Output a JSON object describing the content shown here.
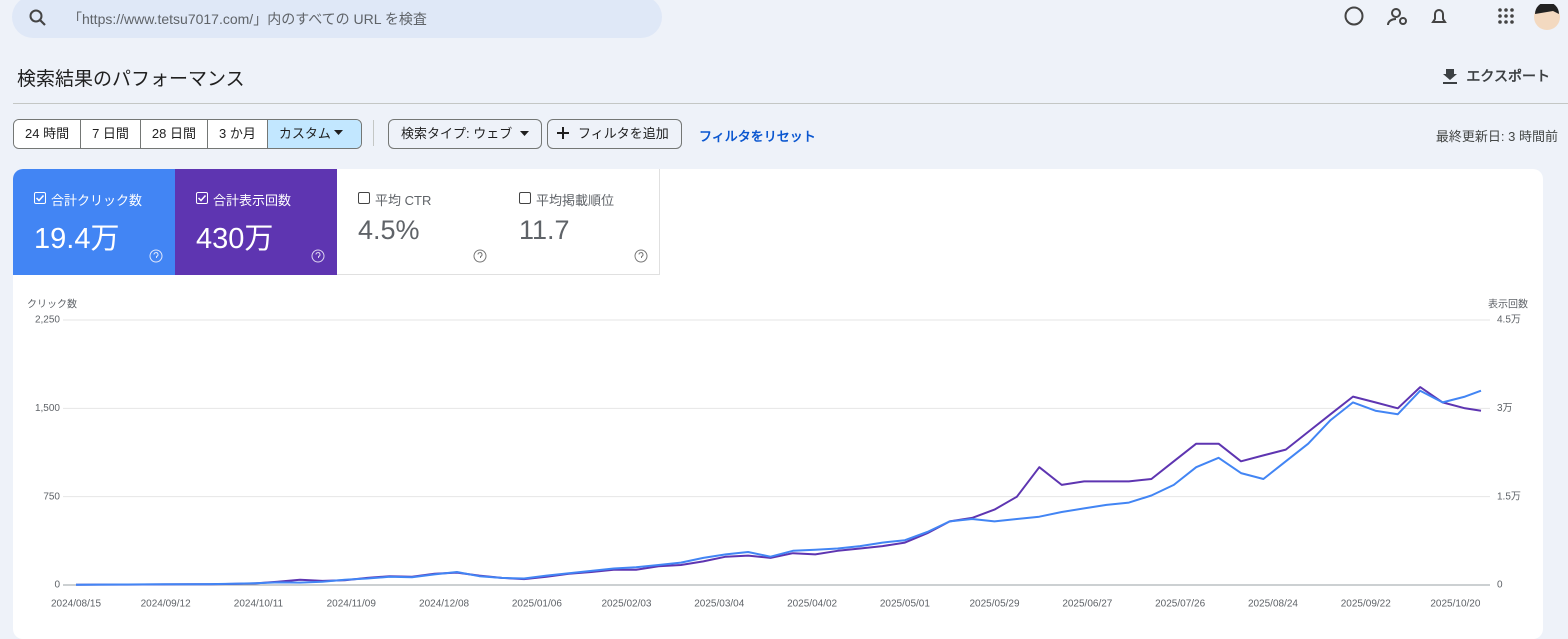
{
  "search": {
    "placeholder": "「https://www.tetsu7017.com/」内のすべての URL を検査"
  },
  "header": {
    "title": "検索結果のパフォーマンス",
    "export": "エクスポート"
  },
  "toolbar": {
    "ranges": [
      "24 時間",
      "7 日間",
      "28 日間",
      "3 か月",
      "カスタム"
    ],
    "search_type": "検索タイプ: ウェブ",
    "add_filter": "フィルタを追加",
    "reset": "フィルタをリセット",
    "last_updated": "最終更新日: 3 時間前"
  },
  "metrics": [
    {
      "label": "合計クリック数",
      "value": "19.4万"
    },
    {
      "label": "合計表示回数",
      "value": "430万"
    },
    {
      "label": "平均 CTR",
      "value": "4.5%"
    },
    {
      "label": "平均掲載順位",
      "value": "11.7"
    }
  ],
  "chart_data": {
    "type": "line",
    "y_label": "クリック数",
    "y2_label": "表示回数",
    "grid": true,
    "x": [
      "2024/08/15",
      "2024/08/22",
      "2024/08/29",
      "2024/09/05",
      "2024/09/12",
      "2024/09/19",
      "2024/09/26",
      "2024/10/03",
      "2024/10/10",
      "2024/10/17",
      "2024/10/24",
      "2024/10/31",
      "2024/11/07",
      "2024/11/14",
      "2024/11/21",
      "2024/11/28",
      "2024/12/05",
      "2024/12/12",
      "2024/12/19",
      "2024/12/26",
      "2025/01/02",
      "2025/01/09",
      "2025/01/16",
      "2025/01/23",
      "2025/01/30",
      "2025/02/06",
      "2025/02/13",
      "2025/02/20",
      "2025/02/27",
      "2025/03/06",
      "2025/03/13",
      "2025/03/20",
      "2025/03/27",
      "2025/04/03",
      "2025/04/10",
      "2025/04/17",
      "2025/04/24",
      "2025/05/01",
      "2025/05/08",
      "2025/05/15",
      "2025/05/22",
      "2025/05/29",
      "2025/06/05",
      "2025/06/12",
      "2025/06/19",
      "2025/06/26",
      "2025/07/03",
      "2025/07/10",
      "2025/07/17",
      "2025/07/24",
      "2025/07/31",
      "2025/08/07",
      "2025/08/14",
      "2025/08/21",
      "2025/08/28",
      "2025/09/04",
      "2025/09/11",
      "2025/09/18",
      "2025/09/25",
      "2025/10/02",
      "2025/10/09",
      "2025/10/16",
      "2025/10/23",
      "2025/10/28"
    ],
    "xticks": [
      "2024/08/15",
      "2024/09/12",
      "2024/10/11",
      "2024/11/09",
      "2024/12/08",
      "2025/01/06",
      "2025/02/03",
      "2025/03/04",
      "2025/04/02",
      "2025/05/01",
      "2025/05/29",
      "2025/06/27",
      "2025/07/26",
      "2025/08/24",
      "2025/09/22",
      "2025/10/20"
    ],
    "ylim": [
      0,
      2250
    ],
    "yticks": [
      0,
      750,
      {
        "value": 1500,
        "label": "1,500"
      },
      {
        "value": 2250,
        "label": "2,250"
      }
    ],
    "y2lim": [
      0,
      45000
    ],
    "y2ticks": [
      0,
      {
        "value": 15000,
        "label": "1.5万"
      },
      {
        "value": 30000,
        "label": "3万"
      },
      {
        "value": 45000,
        "label": "4.5万"
      }
    ],
    "series": [
      {
        "color": "#5e35b1",
        "axis": "y2",
        "values": [
          40,
          60,
          60,
          80,
          100,
          120,
          140,
          180,
          280,
          560,
          900,
          700,
          800,
          1200,
          1500,
          1400,
          1900,
          2100,
          1600,
          1200,
          1000,
          1400,
          1900,
          2200,
          2600,
          2600,
          3200,
          3400,
          4000,
          4800,
          5000,
          4600,
          5400,
          5200,
          5800,
          6200,
          6600,
          7200,
          8800,
          10800,
          11400,
          12800,
          15000,
          20000,
          17000,
          17600,
          17600,
          17600,
          18000,
          21000,
          24000,
          24000,
          21000,
          22000,
          23000,
          26000,
          29000,
          32000,
          31000,
          30000,
          33600,
          31000,
          30000,
          29600
        ]
      },
      {
        "color": "#4285f4",
        "values": [
          2,
          3,
          4,
          5,
          6,
          7,
          8,
          10,
          15,
          22,
          20,
          28,
          45,
          55,
          70,
          65,
          90,
          110,
          75,
          60,
          55,
          80,
          100,
          120,
          140,
          150,
          170,
          190,
          230,
          260,
          280,
          240,
          290,
          300,
          310,
          330,
          360,
          380,
          450,
          540,
          560,
          540,
          560,
          580,
          620,
          650,
          680,
          700,
          760,
          850,
          1000,
          1080,
          950,
          900,
          1050,
          1200,
          1400,
          1550,
          1480,
          1450,
          1650,
          1550,
          1600,
          1650
        ]
      }
    ]
  }
}
